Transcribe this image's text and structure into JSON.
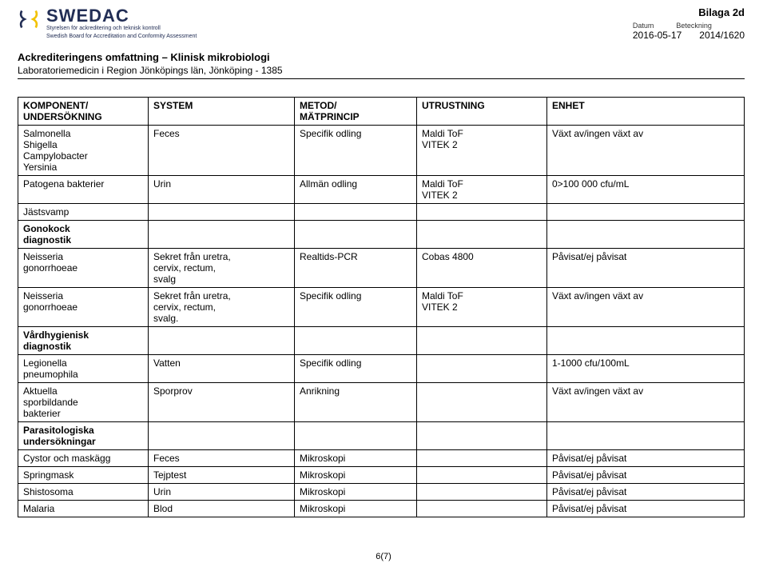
{
  "header": {
    "bilaga": "Bilaga 2d",
    "datum_label": "Datum",
    "beteckning_label": "Beteckning",
    "datum_value": "2016-05-17",
    "beteckning_value": "2014/1620"
  },
  "logo": {
    "brand": "SWEDAC",
    "sub1": "Styrelsen för ackreditering och teknisk kontroll",
    "sub2": "Swedish Board for Accreditation and Conformity Assessment",
    "colors": {
      "blue": "#222e55",
      "yellow": "#f2c200"
    }
  },
  "title": {
    "line1": "Ackrediteringens omfattning – Klinisk mikrobiologi",
    "line2": "Laboratoriemedicin i Region Jönköpings län, Jönköping - 1385"
  },
  "table": {
    "border_color": "#000000",
    "font_size": 12,
    "columns": [
      "KOMPONENT/\nUNDERSÖKNING",
      "SYSTEM",
      "METOD/\nMÄTPRINCIP",
      "UTRUSTNING",
      "ENHET"
    ],
    "rows": [
      {
        "cells": [
          "Salmonella\nShigella\nCampylobacter\nYersinia",
          "Feces",
          "Specifik odling",
          "Maldi ToF\nVITEK 2",
          "Växt av/ingen växt av"
        ]
      },
      {
        "cells": [
          "Patogena bakterier",
          "Urin",
          "Allmän odling",
          "Maldi ToF\nVITEK 2",
          "0>100 000 cfu/mL"
        ]
      },
      {
        "cells": [
          "Jästsvamp",
          "",
          "",
          "",
          ""
        ]
      },
      {
        "section": true,
        "cells": [
          "Gonokock\ndiagnostik",
          "",
          "",
          "",
          ""
        ]
      },
      {
        "cells": [
          "Neisseria\ngonorrhoeae",
          "Sekret från uretra,\ncervix, rectum,\nsvalg",
          "Realtids-PCR",
          "Cobas 4800",
          "Påvisat/ej påvisat"
        ]
      },
      {
        "cells": [
          "Neisseria\ngonorrhoeae",
          "Sekret från uretra,\ncervix, rectum,\nsvalg.",
          "Specifik odling",
          "Maldi ToF\nVITEK 2",
          "Växt av/ingen växt av"
        ]
      },
      {
        "section": true,
        "cells": [
          "Vårdhygienisk\ndiagnostik",
          "",
          "",
          "",
          ""
        ]
      },
      {
        "cells": [
          "Legionella\npneumophila",
          "Vatten",
          "Specifik odling",
          "",
          "1-1000 cfu/100mL"
        ]
      },
      {
        "cells": [
          "Aktuella\nsporbildande\nbakterier",
          "Sporprov",
          "Anrikning",
          "",
          "Växt av/ingen växt av"
        ]
      },
      {
        "section": true,
        "cells": [
          "Parasitologiska\nundersökningar",
          "",
          "",
          "",
          ""
        ]
      },
      {
        "cells": [
          "Cystor och maskägg",
          "Feces",
          "Mikroskopi",
          "",
          "Påvisat/ej påvisat"
        ]
      },
      {
        "cells": [
          "Springmask",
          "Tejptest",
          "Mikroskopi",
          "",
          "Påvisat/ej påvisat"
        ]
      },
      {
        "cells": [
          "Shistosoma",
          "Urin",
          "Mikroskopi",
          "",
          "Påvisat/ej påvisat"
        ]
      },
      {
        "cells": [
          "Malaria",
          "Blod",
          "Mikroskopi",
          "",
          "Påvisat/ej påvisat"
        ]
      }
    ]
  },
  "footer": "6(7)"
}
